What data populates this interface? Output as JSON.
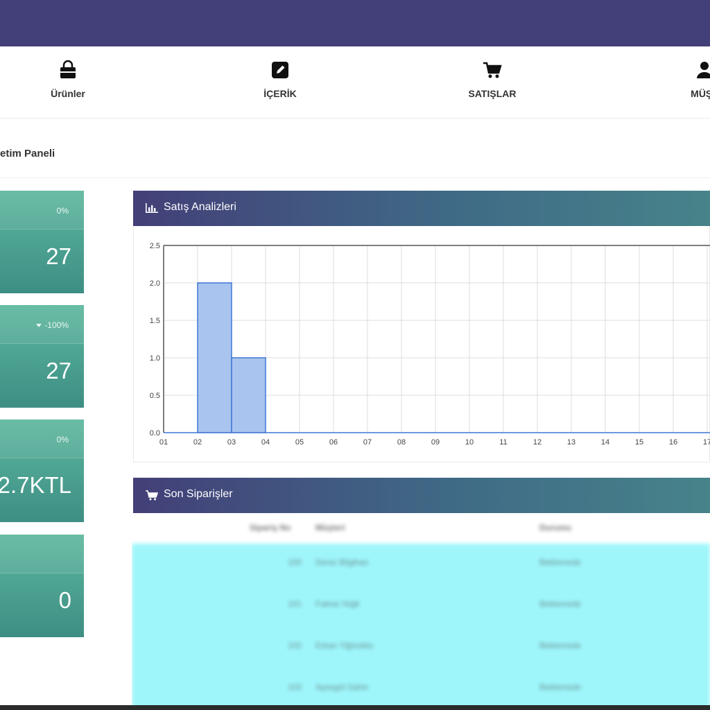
{
  "nav": {
    "items": [
      {
        "label": "Ürünler",
        "icon": "shopping-bag-icon"
      },
      {
        "label": "İÇERİK",
        "icon": "edit-icon"
      },
      {
        "label": "SATIŞLAR",
        "icon": "cart-icon"
      },
      {
        "label": "MÜŞT",
        "icon": "user-icon"
      }
    ]
  },
  "breadcrumb": "etim Paneli",
  "stats": [
    {
      "pct": "0%",
      "value": "27"
    },
    {
      "pct": "-100%",
      "value": "27",
      "trend": "down"
    },
    {
      "pct": "0%",
      "value": "2.7KTL"
    },
    {
      "pct": "",
      "value": "0"
    }
  ],
  "sales_panel": {
    "title": "Satış Analizleri",
    "icon": "bar-chart-icon"
  },
  "orders_panel": {
    "title": "Son Siparişler",
    "icon": "cart-icon",
    "columns": [
      "Sipariş No",
      "Müşteri",
      "Durumu"
    ],
    "rows": [
      [
        "100",
        "Deniz Bilgihan",
        "Beklemede"
      ],
      [
        "101",
        "Fatma Yeğit",
        "Beklemede"
      ],
      [
        "102",
        "Erkan Yiğmoklu",
        "Beklemede"
      ],
      [
        "103",
        "Aysegül Sahin",
        "Beklemede"
      ]
    ]
  },
  "colors": {
    "topbar": "#433f78",
    "card_top": "#5db79e",
    "card_bottom": "#3d8e84",
    "bar_fill": "#a9c4ee",
    "bar_stroke": "#3e77d6",
    "orders_row": "#9ef6fb"
  },
  "chart_data": {
    "type": "bar",
    "categories": [
      "01",
      "02",
      "03",
      "04",
      "05",
      "06",
      "07",
      "08",
      "09",
      "10",
      "11",
      "12",
      "13",
      "14",
      "15",
      "16",
      "17"
    ],
    "values": [
      0,
      2,
      1,
      0,
      0,
      0,
      0,
      0,
      0,
      0,
      0,
      0,
      0,
      0,
      0,
      0,
      0
    ],
    "ylim": [
      0,
      2.5
    ],
    "yticks": [
      "0.0",
      "0.5",
      "1.0",
      "1.5",
      "2.0",
      "2.5"
    ],
    "grid": true,
    "title": "",
    "xlabel": "",
    "ylabel": ""
  }
}
